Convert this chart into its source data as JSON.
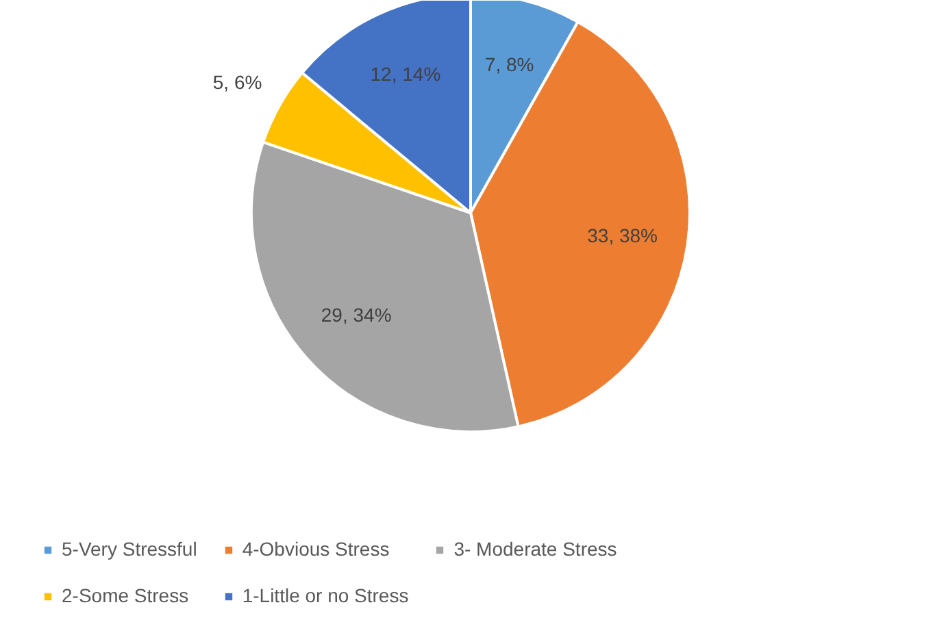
{
  "chart_data": {
    "type": "pie",
    "categories": [
      "5-Very Stressful",
      "4-Obvious Stress",
      "3- Moderate Stress",
      "2-Some Stress",
      "1-Little or no Stress"
    ],
    "values": [
      7,
      33,
      29,
      5,
      12
    ],
    "value_labels": [
      "7, 8%",
      "33, 38%",
      "29, 34%",
      "5, 6%",
      "12, 14%"
    ],
    "colors": [
      "#5b9bd5",
      "#ed7d31",
      "#a5a5a5",
      "#ffc000",
      "#4472c4"
    ],
    "legend": "bottom"
  }
}
